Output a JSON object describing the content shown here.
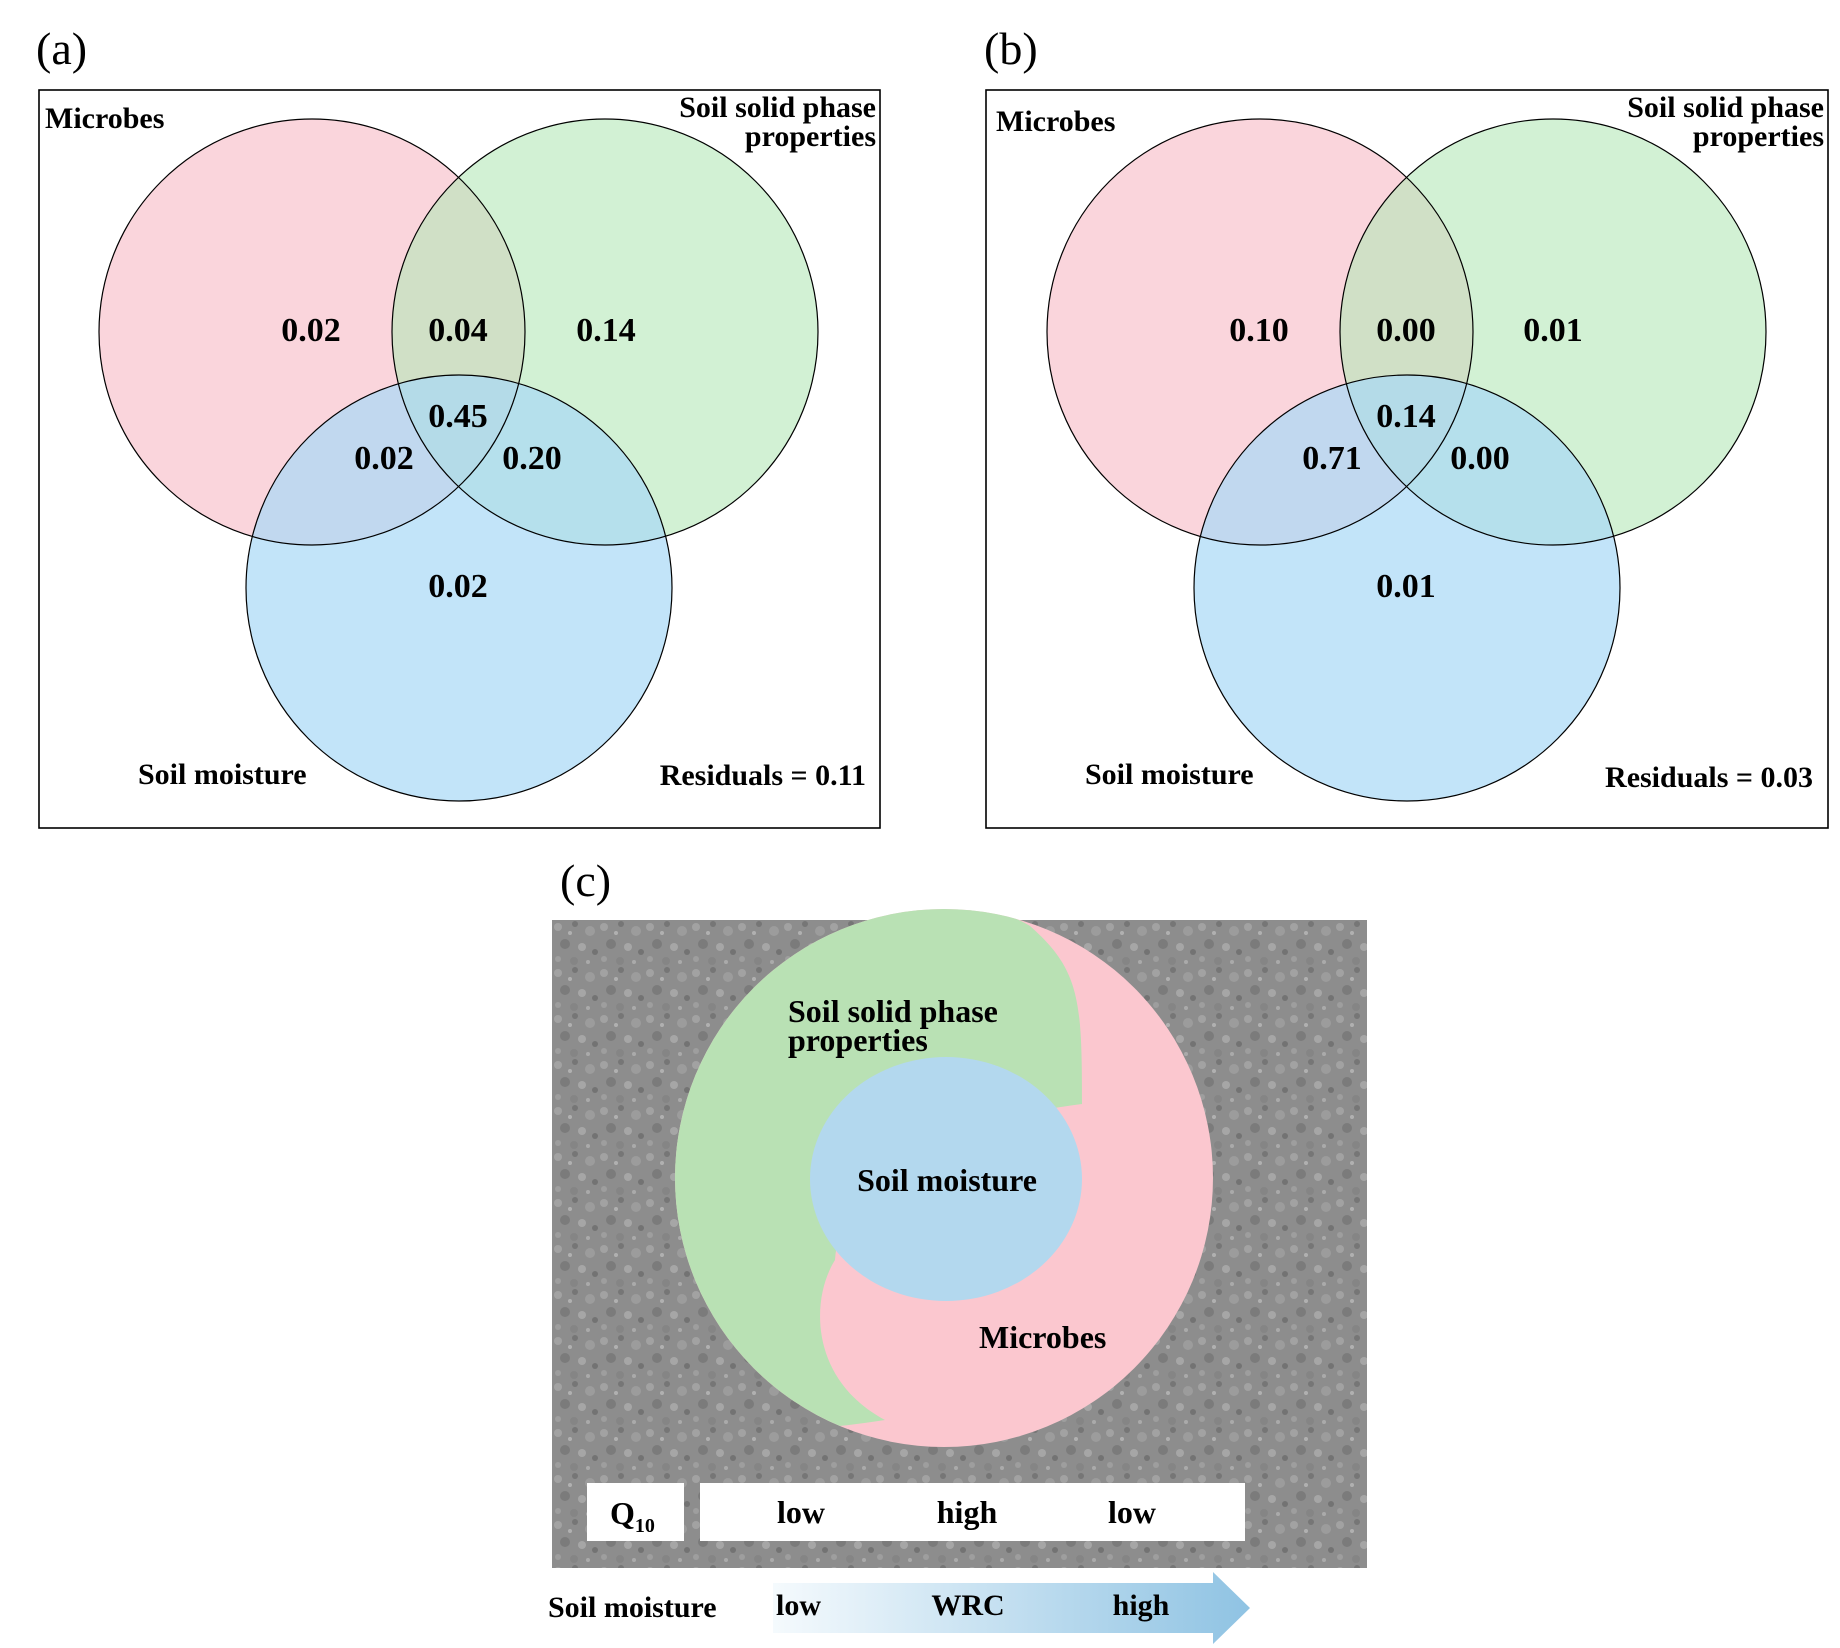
{
  "colors": {
    "microbes": "#f9c9d2",
    "soil_solid": "#c2ecc4",
    "soil_moisture": "#b4def6",
    "panel_c_green": "#b9e1b4",
    "panel_c_pink": "#fbc7cf",
    "panel_c_blue": "#b3d8ee",
    "background_texture": "#8c8c8c",
    "arrow_start": "#f3f9fd",
    "arrow_end": "#93c6e4"
  },
  "panel_a": {
    "label": "(a)",
    "microbes_label": "Microbes",
    "solid_label_line1": "Soil solid phase",
    "solid_label_line2": "properties",
    "moisture_label": "Soil moisture",
    "residuals": "Residuals = 0.11",
    "values": {
      "microbes_only": "0.02",
      "microbes_solid": "0.04",
      "solid_only": "0.14",
      "all_three": "0.45",
      "microbes_moisture": "0.02",
      "solid_moisture": "0.20",
      "moisture_only": "0.02"
    }
  },
  "panel_b": {
    "label": "(b)",
    "microbes_label": "Microbes",
    "solid_label_line1": "Soil solid phase",
    "solid_label_line2": "properties",
    "moisture_label": "Soil moisture",
    "residuals": "Residuals = 0.03",
    "values": {
      "microbes_only": "0.10",
      "microbes_solid": "0.00",
      "solid_only": "0.01",
      "all_three": "0.14",
      "microbes_moisture": "0.71",
      "solid_moisture": "0.00",
      "moisture_only": "0.01"
    }
  },
  "panel_c": {
    "label": "(c)",
    "solid_label_line1": "Soil solid phase",
    "solid_label_line2": "properties",
    "moisture_label": "Soil moisture",
    "microbes_label": "Microbes",
    "q10_main": "Q",
    "q10_sub": "10",
    "q10_levels": [
      "low",
      "high",
      "low"
    ],
    "axis_label": "Soil moisture",
    "axis_low": "low",
    "axis_mid": "WRC",
    "axis_high": "high"
  }
}
